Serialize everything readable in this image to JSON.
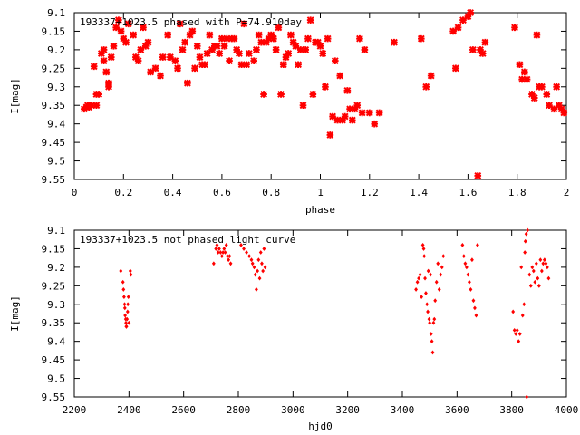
{
  "colors": {
    "marker": "#ff0000",
    "axis": "#000000",
    "background": "#ffffff"
  },
  "chart_data": [
    {
      "type": "scatter",
      "title": "193337+1023.5 phased with P=74.910day",
      "xlabel": "phase",
      "ylabel": "I[mag]",
      "xlim": [
        0,
        2
      ],
      "ylim": [
        9.1,
        9.55
      ],
      "y_inverted": true,
      "xticks": [
        0,
        0.2,
        0.4,
        0.6,
        0.8,
        1,
        1.2,
        1.4,
        1.6,
        1.8,
        2
      ],
      "xtick_labels": [
        "0",
        "0.2",
        "0.4",
        "0.6",
        "0.8",
        "1",
        "1.2",
        "1.4",
        "1.6",
        "1.8",
        "2"
      ],
      "yticks": [
        9.1,
        9.15,
        9.2,
        9.25,
        9.3,
        9.35,
        9.4,
        9.45,
        9.5,
        9.55
      ],
      "ytick_labels": [
        "9.1",
        "9.15",
        "9.2",
        "9.25",
        "9.3",
        "9.35",
        "9.4",
        "9.45",
        "9.5",
        "9.55"
      ],
      "grid": false,
      "marker": "star",
      "points": [
        [
          0.04,
          9.36
        ],
        [
          0.05,
          9.355
        ],
        [
          0.055,
          9.35
        ],
        [
          0.06,
          9.355
        ],
        [
          0.07,
          9.35
        ],
        [
          0.08,
          9.245
        ],
        [
          0.09,
          9.35
        ],
        [
          0.09,
          9.32
        ],
        [
          0.1,
          9.32
        ],
        [
          0.11,
          9.21
        ],
        [
          0.12,
          9.23
        ],
        [
          0.12,
          9.2
        ],
        [
          0.13,
          9.26
        ],
        [
          0.14,
          9.3
        ],
        [
          0.14,
          9.29
        ],
        [
          0.15,
          9.22
        ],
        [
          0.16,
          9.19
        ],
        [
          0.17,
          9.14
        ],
        [
          0.18,
          9.12
        ],
        [
          0.19,
          9.15
        ],
        [
          0.2,
          9.17
        ],
        [
          0.21,
          9.18
        ],
        [
          0.22,
          9.13
        ],
        [
          0.24,
          9.16
        ],
        [
          0.25,
          9.22
        ],
        [
          0.26,
          9.23
        ],
        [
          0.27,
          9.2
        ],
        [
          0.28,
          9.14
        ],
        [
          0.29,
          9.19
        ],
        [
          0.3,
          9.18
        ],
        [
          0.31,
          9.26
        ],
        [
          0.33,
          9.25
        ],
        [
          0.35,
          9.27
        ],
        [
          0.36,
          9.22
        ],
        [
          0.38,
          9.16
        ],
        [
          0.39,
          9.22
        ],
        [
          0.41,
          9.23
        ],
        [
          0.42,
          9.25
        ],
        [
          0.43,
          9.13
        ],
        [
          0.44,
          9.2
        ],
        [
          0.45,
          9.18
        ],
        [
          0.46,
          9.29
        ],
        [
          0.47,
          9.16
        ],
        [
          0.48,
          9.15
        ],
        [
          0.49,
          9.25
        ],
        [
          0.5,
          9.19
        ],
        [
          0.51,
          9.22
        ],
        [
          0.52,
          9.24
        ],
        [
          0.53,
          9.24
        ],
        [
          0.54,
          9.21
        ],
        [
          0.55,
          9.16
        ],
        [
          0.56,
          9.2
        ],
        [
          0.57,
          9.19
        ],
        [
          0.58,
          9.19
        ],
        [
          0.59,
          9.21
        ],
        [
          0.6,
          9.17
        ],
        [
          0.61,
          9.19
        ],
        [
          0.62,
          9.17
        ],
        [
          0.63,
          9.23
        ],
        [
          0.64,
          9.17
        ],
        [
          0.65,
          9.17
        ],
        [
          0.66,
          9.2
        ],
        [
          0.67,
          9.21
        ],
        [
          0.68,
          9.24
        ],
        [
          0.69,
          9.13
        ],
        [
          0.7,
          9.24
        ],
        [
          0.71,
          9.21
        ],
        [
          0.73,
          9.23
        ],
        [
          0.74,
          9.2
        ],
        [
          0.75,
          9.16
        ],
        [
          0.76,
          9.18
        ],
        [
          0.77,
          9.32
        ],
        [
          0.78,
          9.18
        ],
        [
          0.79,
          9.17
        ],
        [
          0.8,
          9.16
        ],
        [
          0.81,
          9.17
        ],
        [
          0.82,
          9.2
        ],
        [
          0.83,
          9.14
        ],
        [
          0.84,
          9.32
        ],
        [
          0.85,
          9.24
        ],
        [
          0.86,
          9.22
        ],
        [
          0.87,
          9.21
        ],
        [
          0.88,
          9.16
        ],
        [
          0.89,
          9.18
        ],
        [
          0.9,
          9.19
        ],
        [
          0.91,
          9.24
        ],
        [
          0.92,
          9.2
        ],
        [
          0.93,
          9.35
        ],
        [
          0.94,
          9.2
        ],
        [
          0.95,
          9.17
        ],
        [
          0.96,
          9.12
        ],
        [
          0.97,
          9.32
        ],
        [
          0.98,
          9.18
        ],
        [
          0.99,
          9.18
        ],
        [
          1.0,
          9.19
        ],
        [
          1.01,
          9.21
        ],
        [
          1.02,
          9.3
        ],
        [
          1.03,
          9.17
        ],
        [
          1.04,
          9.43
        ],
        [
          1.05,
          9.38
        ],
        [
          1.06,
          9.23
        ],
        [
          1.07,
          9.39
        ],
        [
          1.08,
          9.27
        ],
        [
          1.09,
          9.39
        ],
        [
          1.1,
          9.38
        ],
        [
          1.11,
          9.31
        ],
        [
          1.12,
          9.36
        ],
        [
          1.13,
          9.39
        ],
        [
          1.14,
          9.36
        ],
        [
          1.15,
          9.35
        ],
        [
          1.16,
          9.17
        ],
        [
          1.17,
          9.37
        ],
        [
          1.18,
          9.2
        ],
        [
          1.2,
          9.37
        ],
        [
          1.22,
          9.4
        ],
        [
          1.24,
          9.37
        ],
        [
          1.3,
          9.18
        ],
        [
          1.41,
          9.17
        ],
        [
          1.43,
          9.3
        ],
        [
          1.45,
          9.27
        ],
        [
          1.54,
          9.15
        ],
        [
          1.55,
          9.25
        ],
        [
          1.56,
          9.14
        ],
        [
          1.58,
          9.12
        ],
        [
          1.6,
          9.11
        ],
        [
          1.61,
          9.1
        ],
        [
          1.62,
          9.2
        ],
        [
          1.64,
          9.54
        ],
        [
          1.65,
          9.2
        ],
        [
          1.66,
          9.21
        ],
        [
          1.67,
          9.18
        ],
        [
          1.79,
          9.14
        ],
        [
          1.81,
          9.24
        ],
        [
          1.82,
          9.28
        ],
        [
          1.83,
          9.26
        ],
        [
          1.84,
          9.28
        ],
        [
          1.86,
          9.32
        ],
        [
          1.87,
          9.33
        ],
        [
          1.88,
          9.16
        ],
        [
          1.89,
          9.3
        ],
        [
          1.9,
          9.3
        ],
        [
          1.92,
          9.32
        ],
        [
          1.93,
          9.35
        ],
        [
          1.95,
          9.36
        ],
        [
          1.96,
          9.3
        ],
        [
          1.97,
          9.35
        ],
        [
          1.98,
          9.36
        ],
        [
          1.99,
          9.37
        ]
      ]
    },
    {
      "type": "scatter",
      "title": "193337+1023.5 not phased light curve",
      "xlabel": "hjd0",
      "ylabel": "I[mag]",
      "xlim": [
        2200,
        4000
      ],
      "ylim": [
        9.1,
        9.55
      ],
      "y_inverted": true,
      "xticks": [
        2200,
        2400,
        2600,
        2800,
        3000,
        3200,
        3400,
        3600,
        3800,
        4000
      ],
      "xtick_labels": [
        "2200",
        "2400",
        "2600",
        "2800",
        "3000",
        "3200",
        "3400",
        "3600",
        "3800",
        "4000"
      ],
      "yticks": [
        9.1,
        9.15,
        9.2,
        9.25,
        9.3,
        9.35,
        9.4,
        9.45,
        9.5,
        9.55
      ],
      "ytick_labels": [
        "9.1",
        "9.15",
        "9.2",
        "9.25",
        "9.3",
        "9.35",
        "9.4",
        "9.45",
        "9.5",
        "9.55"
      ],
      "grid": false,
      "marker": "diamond",
      "points": [
        [
          2370,
          9.21
        ],
        [
          2378,
          9.24
        ],
        [
          2380,
          9.26
        ],
        [
          2382,
          9.28
        ],
        [
          2384,
          9.3
        ],
        [
          2385,
          9.31
        ],
        [
          2386,
          9.33
        ],
        [
          2388,
          9.34
        ],
        [
          2389,
          9.35
        ],
        [
          2390,
          9.36
        ],
        [
          2391,
          9.36
        ],
        [
          2393,
          9.34
        ],
        [
          2395,
          9.32
        ],
        [
          2396,
          9.3
        ],
        [
          2398,
          9.28
        ],
        [
          2400,
          9.35
        ],
        [
          2405,
          9.21
        ],
        [
          2407,
          9.22
        ],
        [
          2710,
          9.19
        ],
        [
          2718,
          9.15
        ],
        [
          2722,
          9.14
        ],
        [
          2726,
          9.16
        ],
        [
          2730,
          9.15
        ],
        [
          2735,
          9.16
        ],
        [
          2740,
          9.17
        ],
        [
          2744,
          9.16
        ],
        [
          2748,
          9.15
        ],
        [
          2752,
          9.16
        ],
        [
          2756,
          9.14
        ],
        [
          2760,
          9.17
        ],
        [
          2764,
          9.18
        ],
        [
          2768,
          9.17
        ],
        [
          2772,
          9.19
        ],
        [
          2810,
          9.14
        ],
        [
          2820,
          9.15
        ],
        [
          2830,
          9.16
        ],
        [
          2840,
          9.17
        ],
        [
          2848,
          9.18
        ],
        [
          2852,
          9.19
        ],
        [
          2858,
          9.2
        ],
        [
          2862,
          9.22
        ],
        [
          2866,
          9.26
        ],
        [
          2870,
          9.21
        ],
        [
          2874,
          9.18
        ],
        [
          2878,
          9.23
        ],
        [
          2882,
          9.16
        ],
        [
          2886,
          9.19
        ],
        [
          2890,
          9.21
        ],
        [
          2894,
          9.15
        ],
        [
          2898,
          9.2
        ],
        [
          3450,
          9.26
        ],
        [
          3455,
          9.24
        ],
        [
          3460,
          9.23
        ],
        [
          3465,
          9.22
        ],
        [
          3470,
          9.28
        ],
        [
          3475,
          9.14
        ],
        [
          3478,
          9.15
        ],
        [
          3480,
          9.17
        ],
        [
          3483,
          9.23
        ],
        [
          3486,
          9.27
        ],
        [
          3490,
          9.3
        ],
        [
          3493,
          9.32
        ],
        [
          3495,
          9.21
        ],
        [
          3498,
          9.34
        ],
        [
          3500,
          9.35
        ],
        [
          3503,
          9.22
        ],
        [
          3505,
          9.38
        ],
        [
          3508,
          9.4
        ],
        [
          3511,
          9.43
        ],
        [
          3514,
          9.35
        ],
        [
          3517,
          9.34
        ],
        [
          3520,
          9.29
        ],
        [
          3525,
          9.24
        ],
        [
          3530,
          9.19
        ],
        [
          3535,
          9.26
        ],
        [
          3540,
          9.22
        ],
        [
          3545,
          9.2
        ],
        [
          3550,
          9.17
        ],
        [
          3620,
          9.14
        ],
        [
          3625,
          9.17
        ],
        [
          3630,
          9.19
        ],
        [
          3635,
          9.2
        ],
        [
          3640,
          9.22
        ],
        [
          3645,
          9.24
        ],
        [
          3650,
          9.26
        ],
        [
          3655,
          9.18
        ],
        [
          3660,
          9.29
        ],
        [
          3665,
          9.31
        ],
        [
          3670,
          9.33
        ],
        [
          3675,
          9.14
        ],
        [
          3805,
          9.32
        ],
        [
          3810,
          9.37
        ],
        [
          3815,
          9.38
        ],
        [
          3820,
          9.37
        ],
        [
          3825,
          9.4
        ],
        [
          3830,
          9.38
        ],
        [
          3835,
          9.2
        ],
        [
          3840,
          9.33
        ],
        [
          3845,
          9.3
        ],
        [
          3848,
          9.16
        ],
        [
          3850,
          9.13
        ],
        [
          3853,
          9.11
        ],
        [
          3855,
          9.55
        ],
        [
          3858,
          9.1
        ],
        [
          3865,
          9.22
        ],
        [
          3870,
          9.25
        ],
        [
          3875,
          9.2
        ],
        [
          3880,
          9.21
        ],
        [
          3885,
          9.24
        ],
        [
          3890,
          9.19
        ],
        [
          3895,
          9.23
        ],
        [
          3900,
          9.25
        ],
        [
          3905,
          9.18
        ],
        [
          3910,
          9.21
        ],
        [
          3915,
          9.19
        ],
        [
          3920,
          9.18
        ],
        [
          3925,
          9.19
        ],
        [
          3930,
          9.2
        ],
        [
          3935,
          9.23
        ]
      ]
    }
  ]
}
